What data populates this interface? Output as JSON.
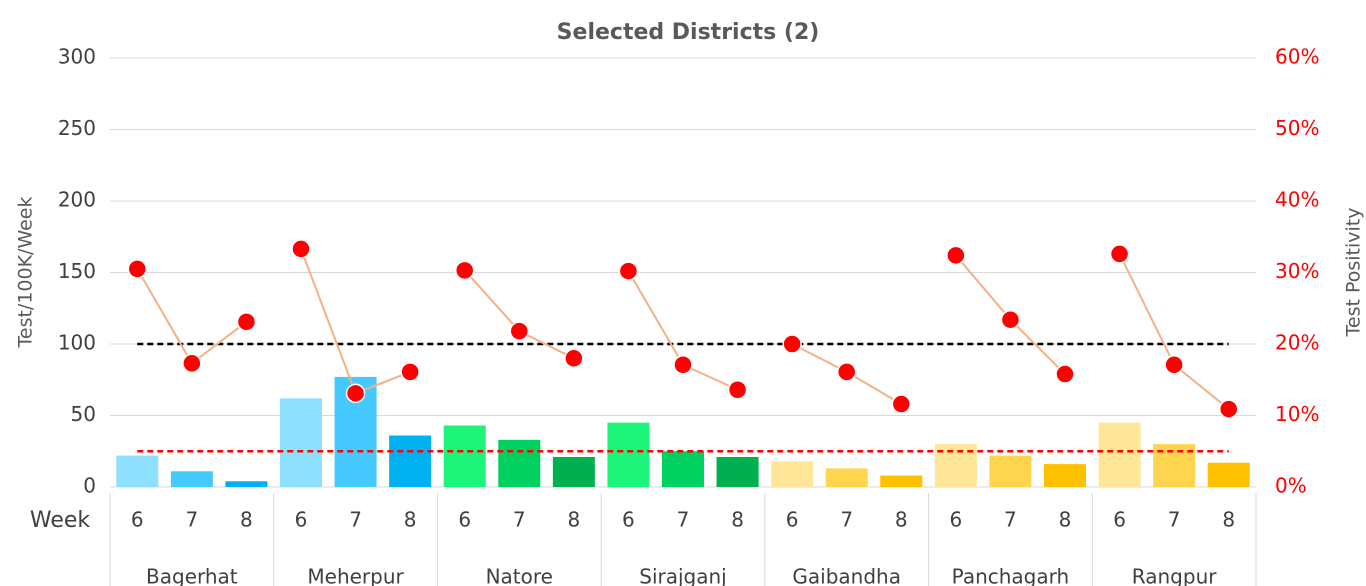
{
  "chart_data": {
    "type": "combo",
    "title": "Selected Districts (2)",
    "y_label": "Test/100K/Week",
    "y2_label": "Test Positivity",
    "x_label": "Week",
    "groups": [
      "Bagerhat",
      "Meherpur",
      "Natore",
      "Sirajganj",
      "Gaibandha",
      "Panchagarh",
      "Rangpur"
    ],
    "categories": [
      "6",
      "7",
      "8",
      "6",
      "7",
      "8",
      "6",
      "7",
      "8",
      "6",
      "7",
      "8",
      "6",
      "7",
      "8",
      "6",
      "7",
      "8",
      "6",
      "7",
      "8"
    ],
    "bars": {
      "values": [
        22,
        11,
        4,
        62,
        77,
        36,
        43,
        33,
        21,
        45,
        25,
        21,
        18,
        13,
        8,
        30,
        22,
        16,
        45,
        30,
        17
      ],
      "colors": [
        "#8fdfff",
        "#45c9ff",
        "#00b0f0",
        "#8fdfff",
        "#45c9ff",
        "#00b0f0",
        "#1cf47a",
        "#00d060",
        "#00b050",
        "#1cf47a",
        "#00d060",
        "#00b050",
        "#ffe699",
        "#ffd54f",
        "#ffc000",
        "#ffe699",
        "#ffd54f",
        "#ffc000",
        "#ffe699",
        "#ffd54f",
        "#ffc000"
      ]
    },
    "line": {
      "axis": "y2",
      "values": [
        30.5,
        17.3,
        23.1,
        33.3,
        13.1,
        16.1,
        30.3,
        21.8,
        18.0,
        30.2,
        17.1,
        13.6,
        20.0,
        16.1,
        11.6,
        32.4,
        23.4,
        15.8,
        32.6,
        17.1,
        10.9
      ],
      "color": "#f4b183",
      "marker_color": "#ff0000"
    },
    "reference_lines": [
      {
        "value": 100,
        "color": "#000000"
      },
      {
        "value": 25,
        "color": "#ff0000"
      }
    ],
    "ylim": [
      0,
      300
    ],
    "yticks": [
      0,
      50,
      100,
      150,
      200,
      250,
      300
    ],
    "y2lim": [
      0,
      60
    ],
    "y2ticks": [
      {
        "value": 0,
        "label": "0%"
      },
      {
        "value": 10,
        "label": "10%"
      },
      {
        "value": 20,
        "label": "20%"
      },
      {
        "value": 30,
        "label": "30%"
      },
      {
        "value": 40,
        "label": "40%"
      },
      {
        "value": 50,
        "label": "50%"
      },
      {
        "value": 60,
        "label": "60%"
      }
    ],
    "y2_color": "#ff0000",
    "grid": true
  }
}
